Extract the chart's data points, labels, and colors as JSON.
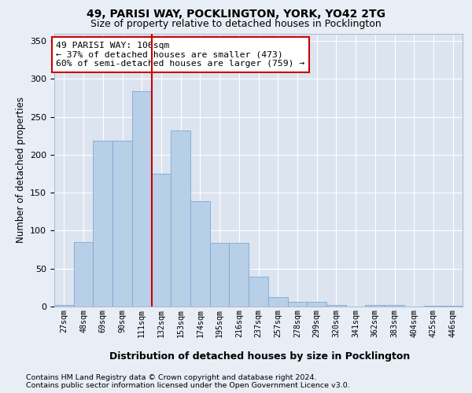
{
  "title_line1": "49, PARISI WAY, POCKLINGTON, YORK, YO42 2TG",
  "title_line2": "Size of property relative to detached houses in Pocklington",
  "xlabel": "Distribution of detached houses by size in Pocklington",
  "ylabel": "Number of detached properties",
  "categories": [
    "27sqm",
    "48sqm",
    "69sqm",
    "90sqm",
    "111sqm",
    "132sqm",
    "153sqm",
    "174sqm",
    "195sqm",
    "216sqm",
    "237sqm",
    "257sqm",
    "278sqm",
    "299sqm",
    "320sqm",
    "341sqm",
    "362sqm",
    "383sqm",
    "404sqm",
    "425sqm",
    "446sqm"
  ],
  "values": [
    2,
    85,
    219,
    219,
    284,
    175,
    232,
    139,
    84,
    84,
    39,
    12,
    6,
    6,
    2,
    0,
    2,
    2,
    0,
    1,
    1
  ],
  "bar_color": "#b8cfe8",
  "bar_edge_color": "#7aaad0",
  "vline_x_index": 4,
  "vline_color": "#cc0000",
  "annotation_text": "49 PARISI WAY: 106sqm\n← 37% of detached houses are smaller (473)\n60% of semi-detached houses are larger (759) →",
  "annotation_box_facecolor": "#ffffff",
  "annotation_box_edgecolor": "#cc0000",
  "ylim": [
    0,
    360
  ],
  "yticks": [
    0,
    50,
    100,
    150,
    200,
    250,
    300,
    350
  ],
  "footer_line1": "Contains HM Land Registry data © Crown copyright and database right 2024.",
  "footer_line2": "Contains public sector information licensed under the Open Government Licence v3.0.",
  "background_color": "#e8eef6",
  "plot_bg_color": "#dce4f0",
  "grid_color": "#ffffff"
}
